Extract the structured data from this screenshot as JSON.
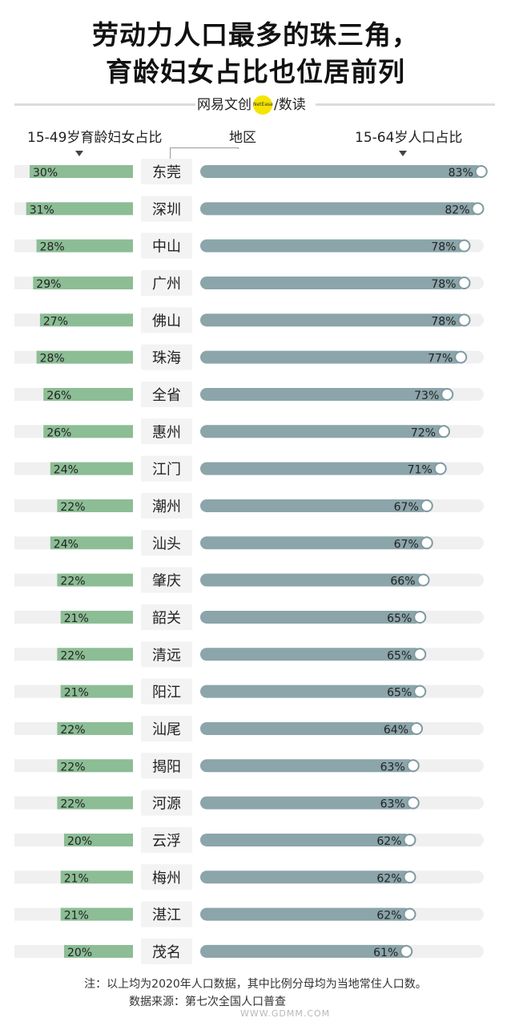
{
  "title": {
    "line1": "劳动力人口最多的珠三角，",
    "line2": "育龄妇女占比也位居前列"
  },
  "brand": {
    "name": "网易文创",
    "badge": "NetEase",
    "suffix": "/数读"
  },
  "headers": {
    "left": "15-49岁育龄妇女占比",
    "middle": "地区",
    "right": "15-64岁人口占比"
  },
  "notes": {
    "note": "注：以上均为2020年人口数据，其中比例分母均为当地常住人口数。",
    "source": "数据来源：第七次全国人口普查"
  },
  "watermark": "WWW.GDMM.COM",
  "colors": {
    "green_bar": "#8cbd95",
    "teal_bar": "#8ba5aa",
    "track": "#f0f0f0",
    "circle_stroke": "#7f9aa0"
  },
  "chart_data": {
    "type": "bar",
    "categories": [
      "东莞",
      "深圳",
      "中山",
      "广州",
      "佛山",
      "珠海",
      "全省",
      "惠州",
      "江门",
      "潮州",
      "汕头",
      "肇庆",
      "韶关",
      "清远",
      "阳江",
      "汕尾",
      "揭阳",
      "河源",
      "云浮",
      "梅州",
      "湛江",
      "茂名"
    ],
    "series": [
      {
        "name": "15-49岁育龄妇女占比",
        "values": [
          30,
          31,
          28,
          29,
          27,
          28,
          26,
          26,
          24,
          22,
          24,
          22,
          21,
          22,
          21,
          22,
          22,
          22,
          20,
          21,
          21,
          20
        ],
        "labels": [
          "30%",
          "31%",
          "28%",
          "29%",
          "27%",
          "28%",
          "26%",
          "26%",
          "24%",
          "22%",
          "24%",
          "22%",
          "21%",
          "22%",
          "21%",
          "22%",
          "22%",
          "22%",
          "20%",
          "21%",
          "21%",
          "20%"
        ]
      },
      {
        "name": "15-64岁人口占比",
        "values": [
          83,
          82,
          78,
          78,
          78,
          77,
          73,
          72,
          71,
          67,
          67,
          66,
          65,
          65,
          65,
          64,
          63,
          63,
          62,
          62,
          62,
          61
        ],
        "labels": [
          "83%",
          "82%",
          "78%",
          "78%",
          "78%",
          "77%",
          "73%",
          "72%",
          "71%",
          "67%",
          "67%",
          "66%",
          "65%",
          "65%",
          "65%",
          "64%",
          "63%",
          "63%",
          "62%",
          "62%",
          "62%",
          "61%"
        ]
      }
    ],
    "title": "劳动力人口最多的珠三角，育龄妇女占比也位居前列",
    "xlabel": "",
    "ylabel": "",
    "ylim": [
      0,
      100
    ]
  }
}
